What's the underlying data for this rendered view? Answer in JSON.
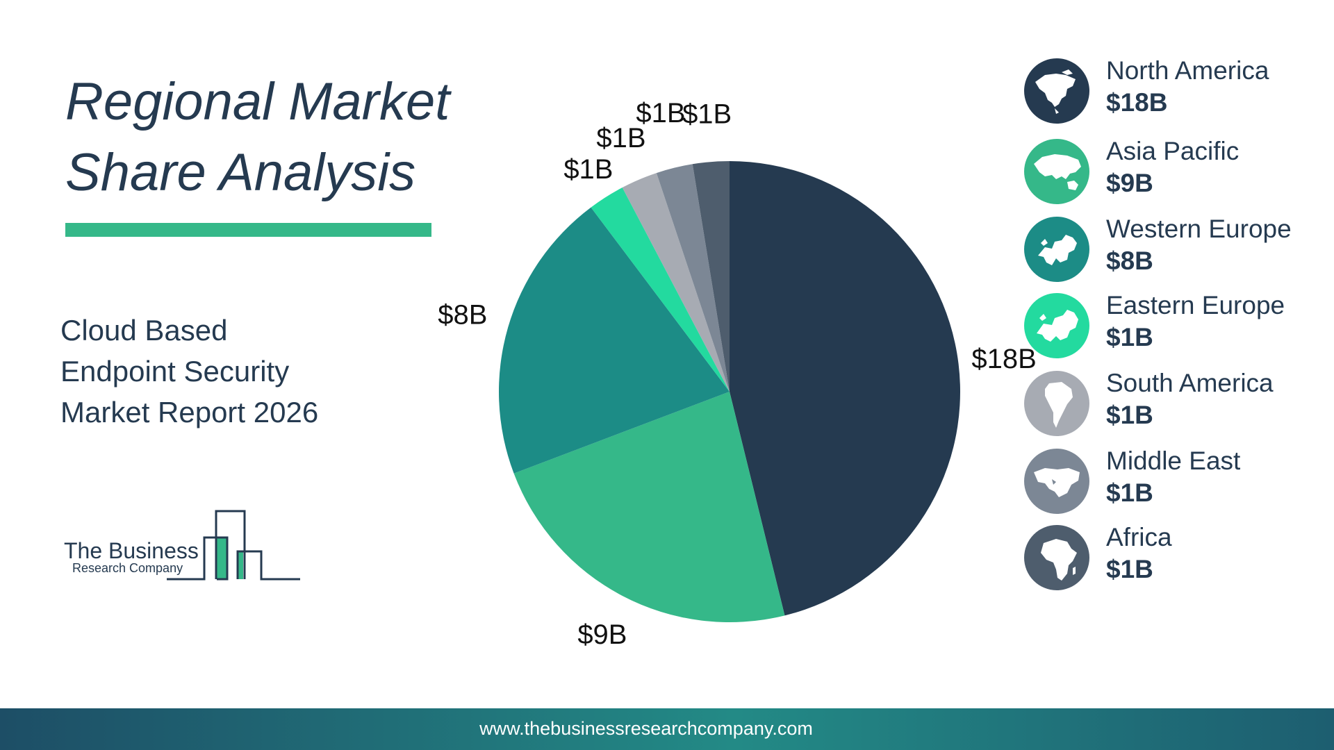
{
  "header": {
    "title_line1": "Regional Market",
    "title_line2": "Share Analysis",
    "subtitle_line1": "Cloud Based",
    "subtitle_line2": "Endpoint Security",
    "subtitle_line3": "Market Report 2026"
  },
  "logo": {
    "line1": "The Business",
    "line2": "Research Company"
  },
  "footer": {
    "url": "www.thebusinessresearchcompany.com"
  },
  "colors": {
    "title": "#253a50",
    "accent_bar": "#35b889"
  },
  "chart_data": {
    "type": "pie",
    "start": "12 o'clock",
    "direction": "clockwise",
    "categories": [
      "North America",
      "Asia Pacific",
      "Western Europe",
      "Eastern Europe",
      "South America",
      "Middle East",
      "Africa"
    ],
    "values": [
      18,
      9,
      8,
      1,
      1,
      1,
      1
    ],
    "labels": [
      "$18B",
      "$9B",
      "$8B",
      "$1B",
      "$1B",
      "$1B",
      "$1B"
    ],
    "colors": [
      "#253a50",
      "#35b889",
      "#1c8c86",
      "#23da9f",
      "#a7abb3",
      "#7c8795",
      "#4e5d6d"
    ],
    "legend_placement": "right"
  },
  "legend": {
    "items": [
      {
        "name": "North America",
        "value": "$18B",
        "color": "#253a50",
        "icon": "north-america-map-icon"
      },
      {
        "name": "Asia Pacific",
        "value": "$9B",
        "color": "#35b889",
        "icon": "asia-pacific-map-icon"
      },
      {
        "name": "Western Europe",
        "value": "$8B",
        "color": "#1c8c86",
        "icon": "western-europe-map-icon"
      },
      {
        "name": "Eastern Europe",
        "value": "$1B",
        "color": "#23da9f",
        "icon": "eastern-europe-map-icon"
      },
      {
        "name": "South America",
        "value": "$1B",
        "color": "#a7abb3",
        "icon": "south-america-map-icon"
      },
      {
        "name": "Middle East",
        "value": "$1B",
        "color": "#7c8795",
        "icon": "middle-east-map-icon"
      },
      {
        "name": "Africa",
        "value": "$1B",
        "color": "#4e5d6d",
        "icon": "africa-map-icon"
      }
    ]
  }
}
